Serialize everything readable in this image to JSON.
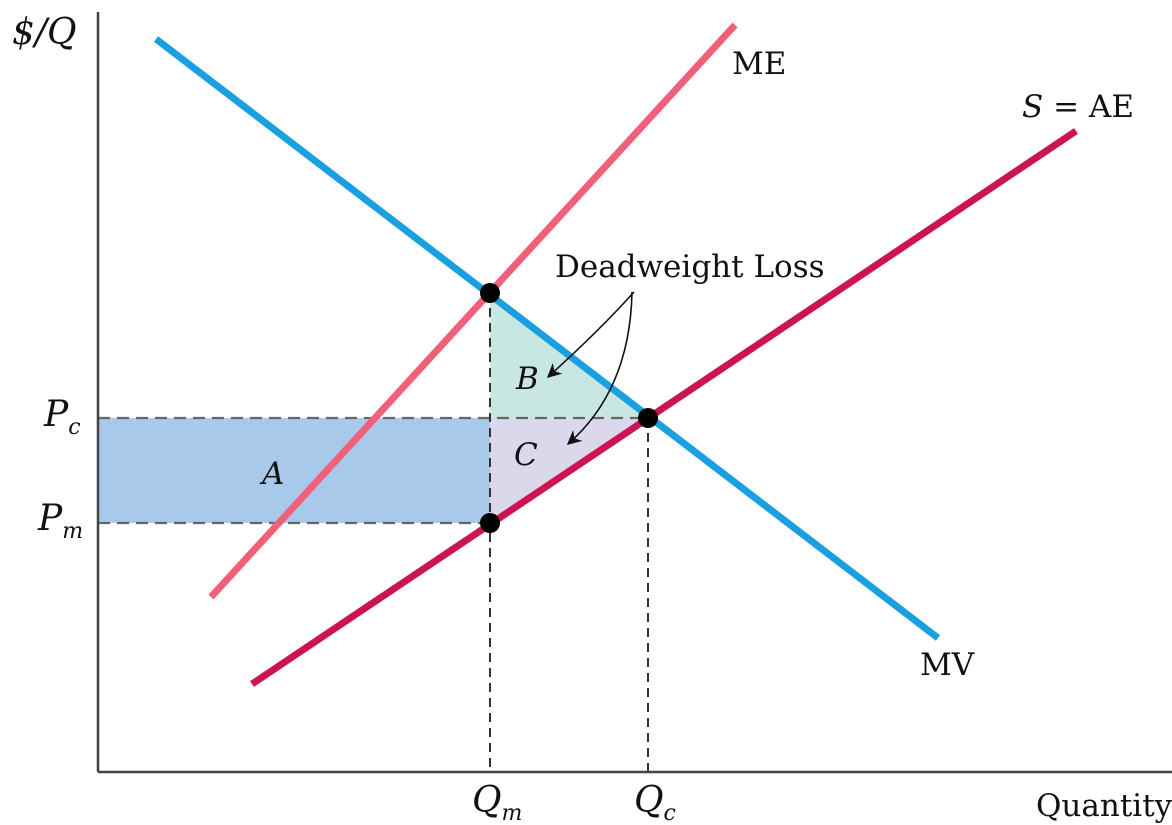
{
  "axes": {
    "y_label": "$/Q",
    "x_label": "Quantity"
  },
  "ticks": {
    "y": [
      {
        "base": "P",
        "sub": "c"
      },
      {
        "base": "P",
        "sub": "m"
      }
    ],
    "x": [
      {
        "base": "Q",
        "sub": "m"
      },
      {
        "base": "Q",
        "sub": "c"
      }
    ]
  },
  "curves": {
    "me": "ME",
    "supply_italic": "S",
    "supply_rest": " = AE",
    "mv": "MV"
  },
  "areas": {
    "a": "A",
    "b": "B",
    "c": "C"
  },
  "annotation": "Deadweight Loss",
  "colors": {
    "mv_curve": "#1aa0e0",
    "me_curve": "#f0607a",
    "supply_curve": "#cc1455",
    "area_a": "#a8c9ea",
    "area_b": "#c8e6e2",
    "area_c": "#dcd8ec",
    "axis": "#444444"
  }
}
